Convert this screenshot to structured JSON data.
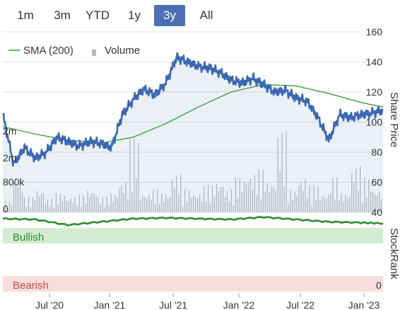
{
  "range_buttons": [
    "1m",
    "3m",
    "YTD",
    "1y",
    "3y",
    "All"
  ],
  "active_range": "3y",
  "legend": {
    "sma_label": "SMA (200)",
    "volume_label": "Volume"
  },
  "colors": {
    "price": "#3b68b4",
    "sma": "#3aa53a",
    "volume": "#b8b8b8",
    "active_button": "#4a6fb5",
    "bullish_band": "#d3ebd3",
    "bearish_band": "#f7dede",
    "stockrank": "#2e8b2e"
  },
  "chart_data": [
    {
      "type": "line",
      "title": "",
      "x_axis_labels": [
        "Jul '20",
        "Jan '21",
        "Jul '21",
        "Jan '22",
        "Jul '22",
        "Jan '23"
      ],
      "y_right_label": "Share Price",
      "y_right_ticks": [
        40,
        60,
        80,
        100,
        120,
        140,
        160
      ],
      "y_left_volume_ticks": [
        "0",
        "800k",
        "2m",
        "2m"
      ],
      "x_range": [
        "2020-03",
        "2023-02"
      ],
      "ylim": [
        40,
        160
      ],
      "grid": true,
      "legend_position": "top-left",
      "series": [
        {
          "name": "",
          "kind": "price",
          "x": [
            "2020-03",
            "2020-04",
            "2020-05",
            "2020-06",
            "2020-07",
            "2020-08",
            "2020-09",
            "2020-10",
            "2020-11",
            "2020-12",
            "2021-01",
            "2021-02",
            "2021-03",
            "2021-04",
            "2021-05",
            "2021-06",
            "2021-07",
            "2021-08",
            "2021-09",
            "2021-10",
            "2021-11",
            "2021-12",
            "2022-01",
            "2022-02",
            "2022-03",
            "2022-04",
            "2022-05",
            "2022-06",
            "2022-07",
            "2022-08",
            "2022-09",
            "2022-10",
            "2022-11",
            "2022-12",
            "2023-01",
            "2023-02"
          ],
          "values": [
            105,
            72,
            83,
            76,
            80,
            90,
            87,
            84,
            87,
            86,
            83,
            105,
            115,
            122,
            118,
            126,
            143,
            140,
            137,
            136,
            133,
            128,
            126,
            129,
            125,
            120,
            121,
            116,
            114,
            103,
            88,
            105,
            103,
            105,
            106,
            108
          ]
        },
        {
          "name": "SMA (200)",
          "kind": "sma",
          "x": [
            "2020-03",
            "2020-06",
            "2020-09",
            "2020-12",
            "2021-03",
            "2021-06",
            "2021-09",
            "2021-12",
            "2022-03",
            "2022-06",
            "2022-09",
            "2022-12",
            "2023-02"
          ],
          "values": [
            97,
            92,
            88,
            86,
            90,
            99,
            110,
            120,
            125,
            124,
            119,
            113,
            110
          ]
        },
        {
          "name": "Volume",
          "kind": "volume",
          "note": "daily bars",
          "values": [
            0.3,
            0.9,
            0.4,
            0.6,
            0.35,
            0.5,
            0.4,
            0.45,
            0.6,
            0.4,
            0.5,
            0.8,
            1.9,
            0.5,
            0.6,
            0.5,
            1.0,
            0.6,
            0.5,
            0.7,
            0.8,
            0.6,
            0.9,
            1.0,
            1.1,
            0.8,
            2.1,
            0.6,
            0.9,
            0.7,
            0.5,
            0.9,
            0.5,
            1.2,
            0.9,
            0.6
          ]
        }
      ]
    },
    {
      "type": "line",
      "title": "",
      "band_labels": {
        "bullish": "Bullish",
        "bearish": "Bearish"
      },
      "y_right_label": "StockRank",
      "ylim": [
        0,
        100
      ],
      "y_ticks": [
        0
      ],
      "series": [
        {
          "name": "",
          "kind": "stockrank",
          "x": [
            "2020-03",
            "2020-06",
            "2020-09",
            "2020-12",
            "2021-03",
            "2021-06",
            "2021-09",
            "2021-12",
            "2022-03",
            "2022-06",
            "2022-09",
            "2022-12",
            "2023-02"
          ],
          "values": [
            92,
            91,
            84,
            88,
            92,
            93,
            92,
            91,
            94,
            91,
            88,
            87,
            86
          ]
        }
      ]
    }
  ]
}
